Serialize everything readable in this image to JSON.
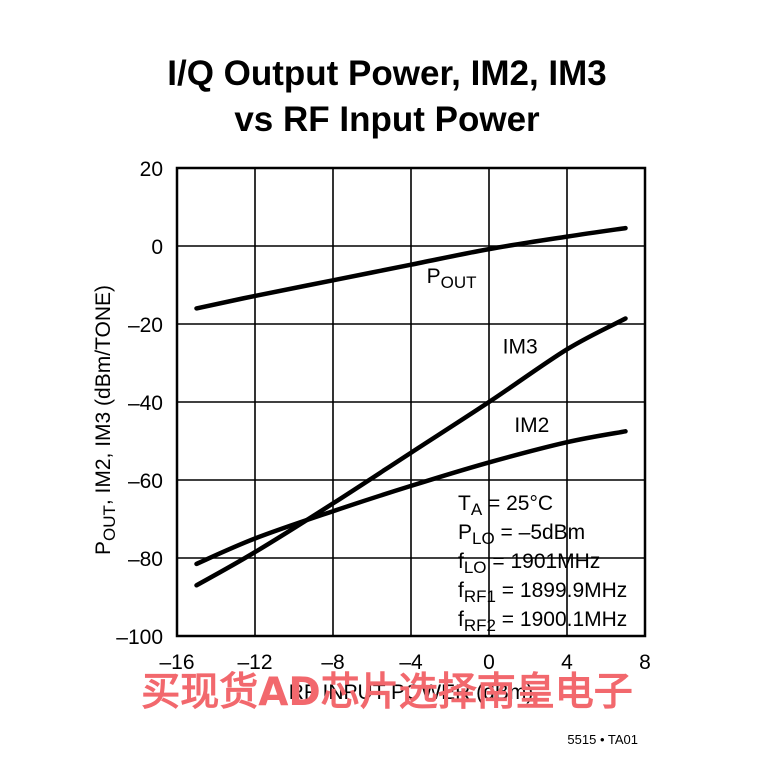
{
  "chart_data": {
    "type": "line",
    "title": [
      "I/Q Output Power, IM2, IM3",
      "vs RF Input Power"
    ],
    "xlabel": "RF INPUT POWER (dBm)",
    "ylabel": {
      "parts": [
        {
          "text": "P",
          "sub": false
        },
        {
          "text": "OUT",
          "sub": true
        },
        {
          "text": ", IM2, IM3 (dBm/TONE)",
          "sub": false
        }
      ]
    },
    "xlim": [
      -16,
      8
    ],
    "ylim": [
      -100,
      20
    ],
    "xticks": [
      -16,
      -12,
      -8,
      -4,
      0,
      4,
      8
    ],
    "xtick_labels": [
      "–16",
      "–12",
      "–8",
      "–4",
      "0",
      "4",
      "8"
    ],
    "yticks": [
      20,
      0,
      -20,
      -40,
      -60,
      -80,
      -100
    ],
    "ytick_labels": [
      "20",
      "0",
      "–20",
      "–40",
      "–60",
      "–80",
      "–100"
    ],
    "grid": true,
    "series": [
      {
        "name": "P_OUT",
        "label_parts": [
          {
            "text": "P",
            "sub": false
          },
          {
            "text": "OUT",
            "sub": true
          }
        ],
        "label_at": [
          -3.2,
          -9.5
        ],
        "x": [
          -15,
          -12,
          -8,
          -4,
          0,
          4,
          7
        ],
        "y": [
          -16,
          -12.8,
          -8.8,
          -4.8,
          -0.8,
          2.4,
          4.6
        ]
      },
      {
        "name": "IM3",
        "label_parts": [
          {
            "text": "IM3",
            "sub": false
          }
        ],
        "label_at": [
          0.7,
          -27.5
        ],
        "x": [
          -15,
          -12,
          -8,
          -4,
          0,
          4,
          7
        ],
        "y": [
          -87,
          -78.5,
          -66,
          -53,
          -40,
          -26.5,
          -18.6
        ]
      },
      {
        "name": "IM2",
        "label_parts": [
          {
            "text": "IM2",
            "sub": false
          }
        ],
        "label_at": [
          1.3,
          -47.7
        ],
        "x": [
          -15,
          -12,
          -8,
          -4,
          0,
          4,
          7
        ],
        "y": [
          -81.5,
          -75,
          -68,
          -61.5,
          -55.5,
          -50.3,
          -47.5
        ]
      }
    ],
    "conditions": [
      [
        {
          "text": "T",
          "sub": false
        },
        {
          "text": "A",
          "sub": true
        },
        {
          "text": " = 25°C",
          "sub": false
        }
      ],
      [
        {
          "text": "P",
          "sub": false
        },
        {
          "text": "LO",
          "sub": true
        },
        {
          "text": " = –5dBm",
          "sub": false
        }
      ],
      [
        {
          "text": "f",
          "sub": false
        },
        {
          "text": "LO",
          "sub": true
        },
        {
          "text": " = 1901MHz",
          "sub": false
        }
      ],
      [
        {
          "text": "f",
          "sub": false
        },
        {
          "text": "RF1",
          "sub": true
        },
        {
          "text": " = 1899.9MHz",
          "sub": false
        }
      ],
      [
        {
          "text": "f",
          "sub": false
        },
        {
          "text": "RF2",
          "sub": true
        },
        {
          "text": " = 1900.1MHz",
          "sub": false
        }
      ]
    ]
  },
  "figure_id": "5515 • TA01",
  "watermark": "买现货AD芯片选择南皇电子",
  "colors": {
    "line": "#000000",
    "grid": "#000000",
    "watermark": "#f2686d"
  }
}
